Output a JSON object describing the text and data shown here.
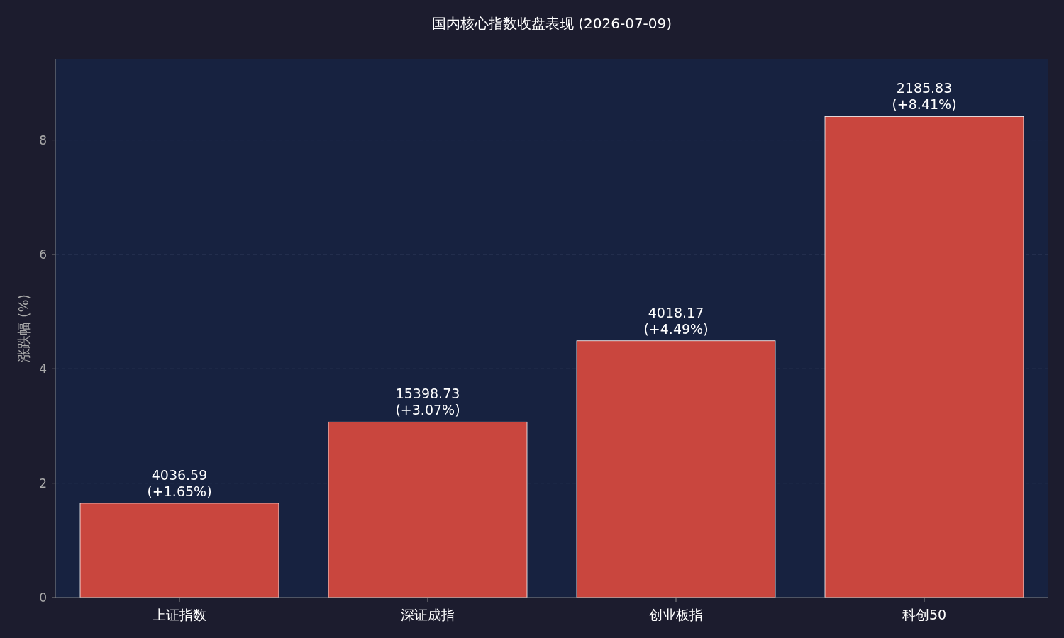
{
  "chart_data": {
    "type": "bar",
    "title": "国内核心指数收盘表现 (2026-07-09)",
    "ylabel": "涨跌幅 (%)",
    "categories": [
      "上证指数",
      "深证成指",
      "创业板指",
      "科创50"
    ],
    "values": [
      1.65,
      3.07,
      4.49,
      8.41
    ],
    "color": "#c9463e",
    "value_labels": [
      "4036.59\n(+1.65%)",
      "15398.73\n(+3.07%)",
      "4018.17\n(+4.49%)",
      "2185.83\n(+8.41%)"
    ],
    "ylim": [
      0,
      9.42
    ],
    "yticks": [
      0,
      2,
      4,
      6,
      8
    ],
    "grid": "y"
  }
}
